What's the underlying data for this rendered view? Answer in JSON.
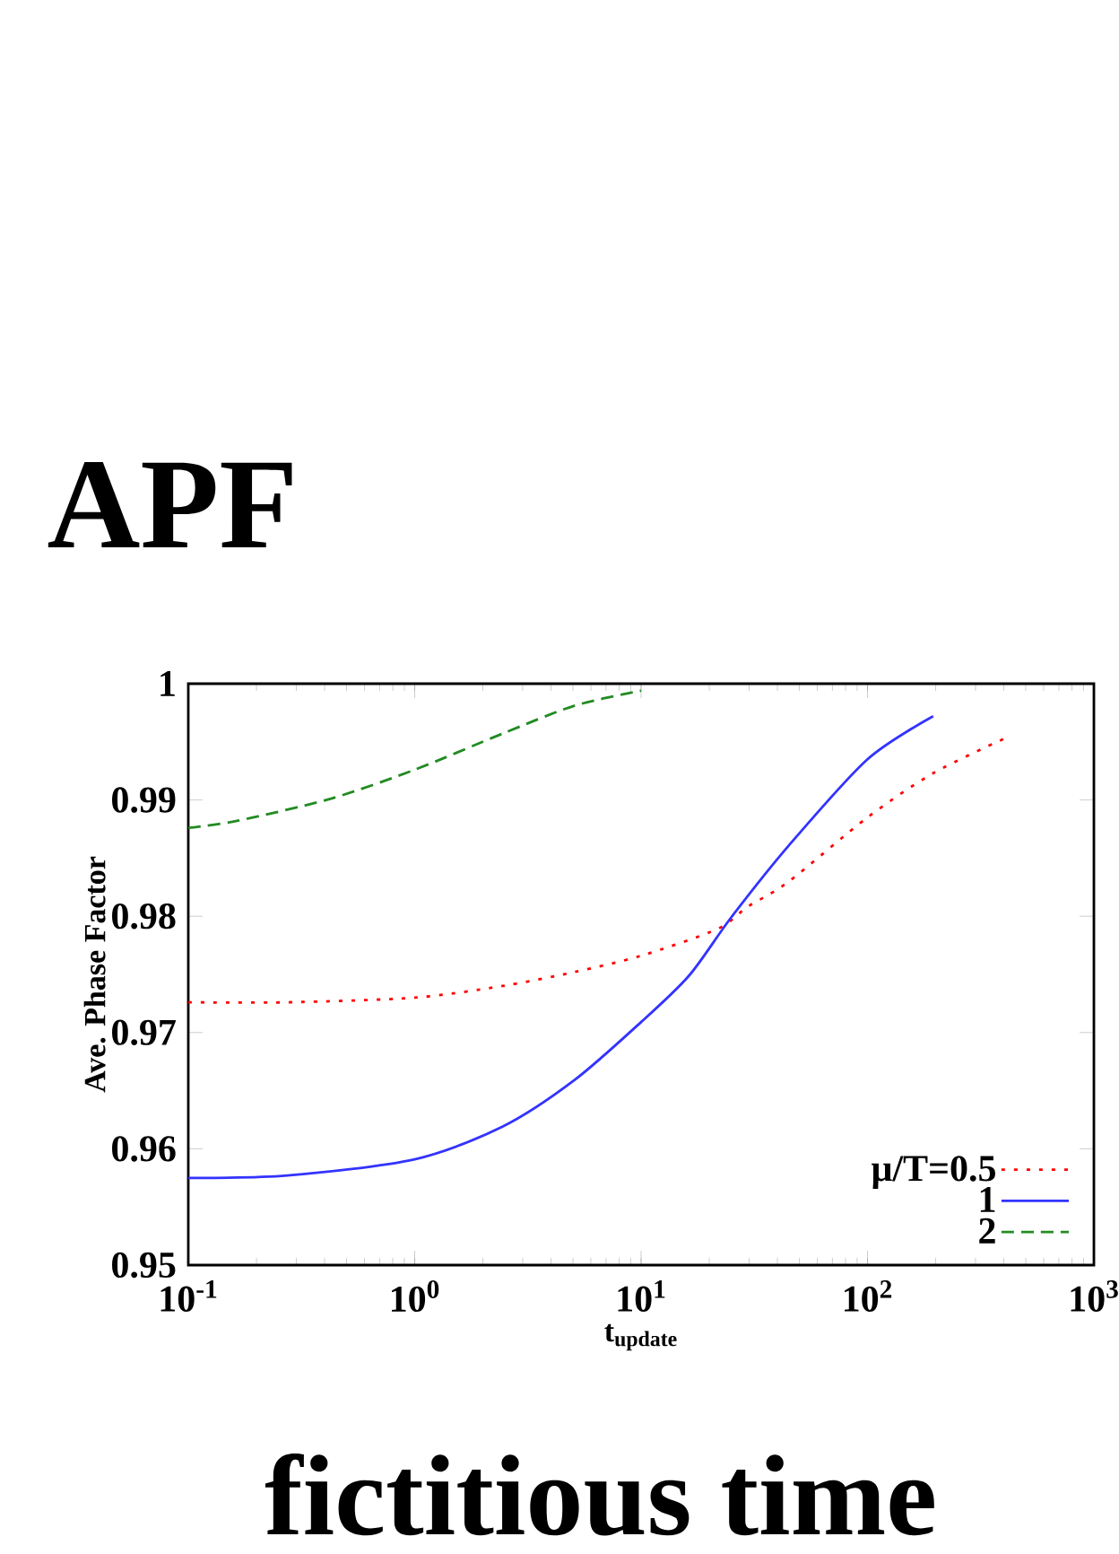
{
  "chart_data": {
    "type": "line",
    "title": "APF",
    "annotations": [
      "fictitious time"
    ],
    "xlabel": "t$_{update}$",
    "ylabel": "Ave. Phase Factor",
    "log": "x",
    "xlim": [
      0.1,
      1000
    ],
    "ylim": [
      0.95,
      1.0
    ],
    "xticks": [
      {
        "value": 0.1,
        "label": "10$^{-1}$"
      },
      {
        "value": 1,
        "label": "10$^{0}$"
      },
      {
        "value": 10,
        "label": "10$^{1}$"
      },
      {
        "value": 100,
        "label": "10$^{2}$"
      },
      {
        "value": 1000,
        "label": "10$^{3}$"
      }
    ],
    "yticks": [
      0.95,
      0.96,
      0.97,
      0.98,
      0.99,
      1
    ],
    "legend": "bottom right",
    "series": [
      {
        "name": "μ/T=0.5",
        "color": "#ff0000",
        "line_style": "dotted",
        "x": [
          0.1,
          0.274,
          1,
          2.44,
          5.07,
          10,
          21.7,
          29.5,
          45,
          100,
          195,
          415
        ],
        "values": [
          0.9726,
          0.9726,
          0.973,
          0.974,
          0.9752,
          0.9766,
          0.9789,
          0.9808,
          0.983,
          0.9885,
          0.9923,
          0.9954
        ]
      },
      {
        "name": "1",
        "color": "#3333ff",
        "line_style": "solid",
        "x": [
          0.1,
          0.274,
          1,
          2.44,
          5.07,
          10,
          16.3,
          25,
          45,
          100,
          195
        ],
        "values": [
          0.9575,
          0.9577,
          0.9591,
          0.9619,
          0.9659,
          0.9709,
          0.9749,
          0.9799,
          0.9861,
          0.9935,
          0.9972
        ]
      },
      {
        "name": "2",
        "color": "#228b22",
        "line_style": "dashed",
        "x": [
          0.1,
          0.164,
          0.424,
          1,
          2.44,
          5.07,
          10
        ],
        "values": [
          0.9876,
          0.9882,
          0.9901,
          0.9926,
          0.9957,
          0.9981,
          0.9994
        ]
      }
    ]
  }
}
